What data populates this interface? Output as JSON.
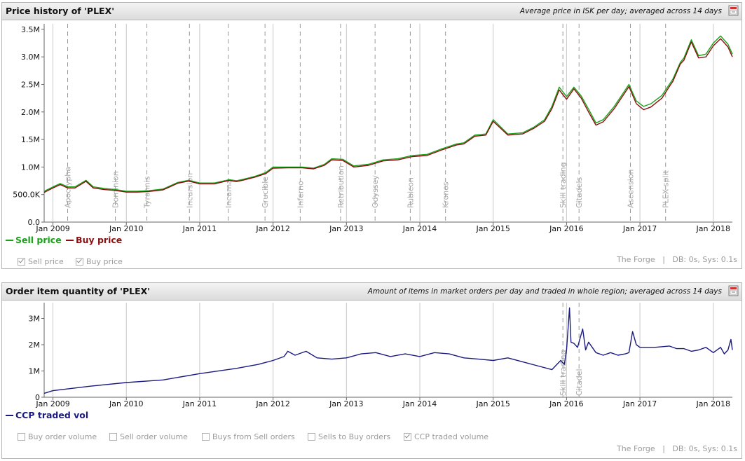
{
  "price_panel": {
    "title": "Price history of 'PLEX'",
    "subtitle": "Average price in ISK per day; averaged across 14 days",
    "legend": {
      "sell": "Sell price",
      "buy": "Buy price"
    },
    "checkboxes": [
      {
        "label": "Sell price",
        "checked": true
      },
      {
        "label": "Buy price",
        "checked": true
      }
    ],
    "region": "The Forge",
    "separator": "|",
    "timing": "DB: 0s, Sys: 0.1s",
    "colors": {
      "sell": "#18a218",
      "buy": "#8b0e0e"
    }
  },
  "volume_panel": {
    "title": "Order item quantity of 'PLEX'",
    "subtitle": "Amount of items in market orders per day and traded in whole region; averaged across 14 days",
    "legend": {
      "traded": "CCP traded vol"
    },
    "checkboxes": [
      {
        "label": "Buy order volume",
        "checked": false
      },
      {
        "label": "Sell order volume",
        "checked": false
      },
      {
        "label": "Buys from Sell orders",
        "checked": false
      },
      {
        "label": "Sells to Buy orders",
        "checked": false
      },
      {
        "label": "CCP traded volume",
        "checked": true
      }
    ],
    "region": "The Forge",
    "separator": "|",
    "timing": "DB: 0s, Sys: 0.1s",
    "colors": {
      "traded": "#1a1a80"
    }
  },
  "chart_data": [
    {
      "type": "line",
      "title": "Price history of 'PLEX'",
      "xlim": [
        2008.88,
        2018.26
      ],
      "ylim": [
        0,
        3600000
      ],
      "yticks": [
        {
          "v": 0,
          "label": "0.0"
        },
        {
          "v": 500000,
          "label": "500.0K"
        },
        {
          "v": 1000000,
          "label": "1.0M"
        },
        {
          "v": 1500000,
          "label": "1.5M"
        },
        {
          "v": 2000000,
          "label": "2.0M"
        },
        {
          "v": 2500000,
          "label": "2.5M"
        },
        {
          "v": 3000000,
          "label": "3.0M"
        },
        {
          "v": 3500000,
          "label": "3.5M"
        }
      ],
      "xticks": [
        {
          "v": 2009,
          "label": "Jan 2009"
        },
        {
          "v": 2010,
          "label": "Jan 2010"
        },
        {
          "v": 2011,
          "label": "Jan 2011"
        },
        {
          "v": 2012,
          "label": "Jan 2012"
        },
        {
          "v": 2013,
          "label": "Jan 2013"
        },
        {
          "v": 2014,
          "label": "Jan 2014"
        },
        {
          "v": 2015,
          "label": "Jan 2015"
        },
        {
          "v": 2016,
          "label": "Jan 2016"
        },
        {
          "v": 2017,
          "label": "Jan 2017"
        },
        {
          "v": 2018,
          "label": "Jan 2018"
        }
      ],
      "events": [
        {
          "x": 2009.2,
          "label": "Apocrypha"
        },
        {
          "x": 2009.85,
          "label": "Dominion"
        },
        {
          "x": 2010.28,
          "label": "Tyrannis"
        },
        {
          "x": 2010.86,
          "label": "Incursion"
        },
        {
          "x": 2011.39,
          "label": "Incarna"
        },
        {
          "x": 2011.89,
          "label": "Crucible"
        },
        {
          "x": 2012.37,
          "label": "Inferno"
        },
        {
          "x": 2012.92,
          "label": "Retribution"
        },
        {
          "x": 2013.39,
          "label": "Odyssey"
        },
        {
          "x": 2013.87,
          "label": "Rubicon"
        },
        {
          "x": 2014.35,
          "label": "Kronos"
        },
        {
          "x": 2015.95,
          "label": "Skill trading"
        },
        {
          "x": 2016.17,
          "label": "Citadels"
        },
        {
          "x": 2016.87,
          "label": "Ascension"
        },
        {
          "x": 2017.35,
          "label": "PLEX split"
        }
      ],
      "series": [
        {
          "name": "Sell price",
          "x": [
            2008.88,
            2009.0,
            2009.1,
            2009.2,
            2009.3,
            2009.45,
            2009.55,
            2009.7,
            2009.85,
            2010.0,
            2010.15,
            2010.3,
            2010.5,
            2010.6,
            2010.7,
            2010.85,
            2011.0,
            2011.2,
            2011.4,
            2011.5,
            2011.6,
            2011.75,
            2011.9,
            2012.0,
            2012.2,
            2012.4,
            2012.55,
            2012.7,
            2012.8,
            2012.95,
            2013.1,
            2013.3,
            2013.5,
            2013.7,
            2013.9,
            2014.1,
            2014.3,
            2014.5,
            2014.6,
            2014.75,
            2014.9,
            2015.0,
            2015.2,
            2015.4,
            2015.55,
            2015.7,
            2015.8,
            2015.9,
            2016.0,
            2016.1,
            2016.2,
            2016.3,
            2016.4,
            2016.5,
            2016.65,
            2016.8,
            2016.85,
            2016.95,
            2017.05,
            2017.15,
            2017.3,
            2017.4,
            2017.45,
            2017.55,
            2017.6,
            2017.7,
            2017.8,
            2017.9,
            2018.0,
            2018.1,
            2018.2,
            2018.26
          ],
          "values": [
            560000,
            640000,
            700000,
            640000,
            640000,
            760000,
            640000,
            610000,
            590000,
            560000,
            560000,
            570000,
            600000,
            660000,
            720000,
            760000,
            710000,
            710000,
            770000,
            750000,
            780000,
            830000,
            900000,
            1000000,
            1000000,
            1000000,
            980000,
            1050000,
            1150000,
            1140000,
            1020000,
            1050000,
            1130000,
            1150000,
            1210000,
            1230000,
            1330000,
            1420000,
            1440000,
            1580000,
            1600000,
            1860000,
            1600000,
            1620000,
            1720000,
            1860000,
            2100000,
            2450000,
            2280000,
            2450000,
            2290000,
            2050000,
            1800000,
            1860000,
            2100000,
            2400000,
            2500000,
            2200000,
            2100000,
            2150000,
            2300000,
            2500000,
            2600000,
            2900000,
            2980000,
            3310000,
            3020000,
            3050000,
            3250000,
            3380000,
            3230000,
            3050000
          ]
        },
        {
          "name": "Buy price",
          "x": [
            2008.88,
            2009.0,
            2009.1,
            2009.2,
            2009.3,
            2009.45,
            2009.55,
            2009.7,
            2009.85,
            2010.0,
            2010.15,
            2010.3,
            2010.5,
            2010.6,
            2010.7,
            2010.85,
            2011.0,
            2011.2,
            2011.4,
            2011.5,
            2011.6,
            2011.75,
            2011.9,
            2012.0,
            2012.2,
            2012.4,
            2012.55,
            2012.7,
            2012.8,
            2012.95,
            2013.1,
            2013.3,
            2013.5,
            2013.7,
            2013.9,
            2014.1,
            2014.3,
            2014.5,
            2014.6,
            2014.75,
            2014.9,
            2015.0,
            2015.2,
            2015.4,
            2015.55,
            2015.7,
            2015.8,
            2015.9,
            2016.0,
            2016.1,
            2016.2,
            2016.3,
            2016.4,
            2016.5,
            2016.65,
            2016.8,
            2016.85,
            2016.95,
            2017.05,
            2017.15,
            2017.3,
            2017.4,
            2017.45,
            2017.55,
            2017.6,
            2017.7,
            2017.8,
            2017.9,
            2018.0,
            2018.1,
            2018.2,
            2018.26
          ],
          "values": [
            540000,
            620000,
            680000,
            620000,
            620000,
            740000,
            620000,
            590000,
            575000,
            545000,
            545000,
            555000,
            585000,
            645000,
            705000,
            745000,
            695000,
            695000,
            755000,
            735000,
            765000,
            815000,
            880000,
            980000,
            985000,
            985000,
            965000,
            1030000,
            1130000,
            1120000,
            1000000,
            1030000,
            1110000,
            1130000,
            1190000,
            1210000,
            1310000,
            1400000,
            1420000,
            1560000,
            1580000,
            1830000,
            1580000,
            1600000,
            1700000,
            1830000,
            2060000,
            2400000,
            2230000,
            2420000,
            2250000,
            2000000,
            1760000,
            1820000,
            2060000,
            2360000,
            2460000,
            2150000,
            2040000,
            2090000,
            2250000,
            2460000,
            2560000,
            2870000,
            2940000,
            3270000,
            2980000,
            3000000,
            3200000,
            3330000,
            3180000,
            3000000
          ]
        }
      ]
    },
    {
      "type": "line",
      "title": "Order item quantity of 'PLEX'",
      "xlim": [
        2008.88,
        2018.26
      ],
      "ylim": [
        0,
        3600000
      ],
      "yticks": [
        {
          "v": 0,
          "label": "0"
        },
        {
          "v": 1000000,
          "label": "1M"
        },
        {
          "v": 2000000,
          "label": "2M"
        },
        {
          "v": 3000000,
          "label": "3M"
        }
      ],
      "xticks": [
        {
          "v": 2009,
          "label": "Jan 2009"
        },
        {
          "v": 2010,
          "label": "Jan 2010"
        },
        {
          "v": 2011,
          "label": "Jan 2011"
        },
        {
          "v": 2012,
          "label": "Jan 2012"
        },
        {
          "v": 2013,
          "label": "Jan 2013"
        },
        {
          "v": 2014,
          "label": "Jan 2014"
        },
        {
          "v": 2015,
          "label": "Jan 2015"
        },
        {
          "v": 2016,
          "label": "Jan 2016"
        },
        {
          "v": 2017,
          "label": "Jan 2017"
        },
        {
          "v": 2018,
          "label": "Jan 2018"
        }
      ],
      "events": [
        {
          "x": 2015.95,
          "label": "Skill trading"
        },
        {
          "x": 2016.17,
          "label": "Citadel"
        }
      ],
      "series": [
        {
          "name": "CCP traded vol",
          "x": [
            2008.88,
            2009.0,
            2009.5,
            2010.0,
            2010.5,
            2011.0,
            2011.5,
            2011.8,
            2012.0,
            2012.15,
            2012.2,
            2012.3,
            2012.45,
            2012.6,
            2012.8,
            2013.0,
            2013.2,
            2013.4,
            2013.6,
            2013.8,
            2014.0,
            2014.2,
            2014.4,
            2014.6,
            2014.8,
            2015.0,
            2015.2,
            2015.4,
            2015.6,
            2015.8,
            2015.92,
            2015.97,
            2016.0,
            2016.04,
            2016.06,
            2016.1,
            2016.15,
            2016.22,
            2016.26,
            2016.3,
            2016.4,
            2016.5,
            2016.6,
            2016.7,
            2016.8,
            2016.85,
            2016.9,
            2016.95,
            2017.0,
            2017.2,
            2017.4,
            2017.5,
            2017.6,
            2017.7,
            2017.8,
            2017.9,
            2018.0,
            2018.1,
            2018.15,
            2018.2,
            2018.24,
            2018.26
          ],
          "values": [
            150000,
            250000,
            420000,
            560000,
            660000,
            900000,
            1100000,
            1250000,
            1400000,
            1550000,
            1750000,
            1600000,
            1750000,
            1500000,
            1450000,
            1500000,
            1650000,
            1700000,
            1550000,
            1650000,
            1550000,
            1700000,
            1650000,
            1500000,
            1450000,
            1400000,
            1500000,
            1350000,
            1200000,
            1050000,
            1400000,
            1250000,
            1800000,
            3400000,
            2100000,
            2050000,
            1900000,
            2600000,
            1800000,
            2100000,
            1700000,
            1600000,
            1700000,
            1600000,
            1650000,
            1700000,
            2500000,
            2000000,
            1900000,
            1900000,
            1950000,
            1850000,
            1850000,
            1750000,
            1800000,
            1900000,
            1700000,
            1900000,
            1650000,
            1800000,
            2200000,
            1800000
          ]
        }
      ]
    }
  ]
}
